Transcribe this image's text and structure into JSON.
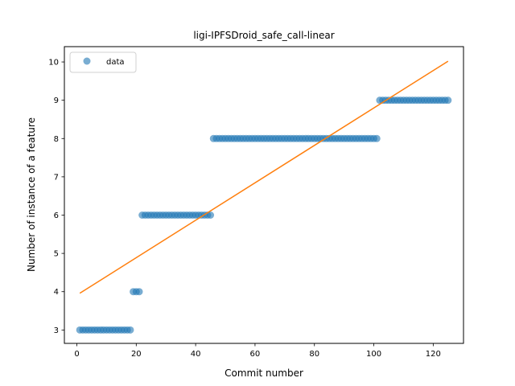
{
  "chart_data": {
    "type": "scatter",
    "title": "ligi-IPFSDroid_safe_call-linear",
    "xlabel": "Commit number",
    "ylabel": "Number of instance of a feature",
    "xlim": [
      -4.2,
      130.2
    ],
    "ylim": [
      2.65,
      10.4
    ],
    "xticks": [
      0,
      20,
      40,
      60,
      80,
      100,
      120
    ],
    "yticks": [
      3,
      4,
      5,
      6,
      7,
      8,
      9,
      10
    ],
    "grid": false,
    "legend": {
      "placement": "top-left",
      "entries": [
        "data"
      ]
    },
    "colors": {
      "data": "#1f77b4",
      "fit": "#ff7f0e"
    },
    "series": [
      {
        "name": "data",
        "kind": "scatter",
        "segments": [
          {
            "x_from": 1,
            "x_to": 18,
            "y": 3
          },
          {
            "x_from": 19,
            "x_to": 21,
            "y": 4
          },
          {
            "x_from": 22,
            "x_to": 45,
            "y": 6
          },
          {
            "x_from": 46,
            "x_to": 101,
            "y": 8
          },
          {
            "x_from": 102,
            "x_to": 125,
            "y": 9
          }
        ]
      },
      {
        "kind": "line",
        "x": [
          1,
          125
        ],
        "y": [
          3.96,
          10.02
        ]
      }
    ]
  }
}
